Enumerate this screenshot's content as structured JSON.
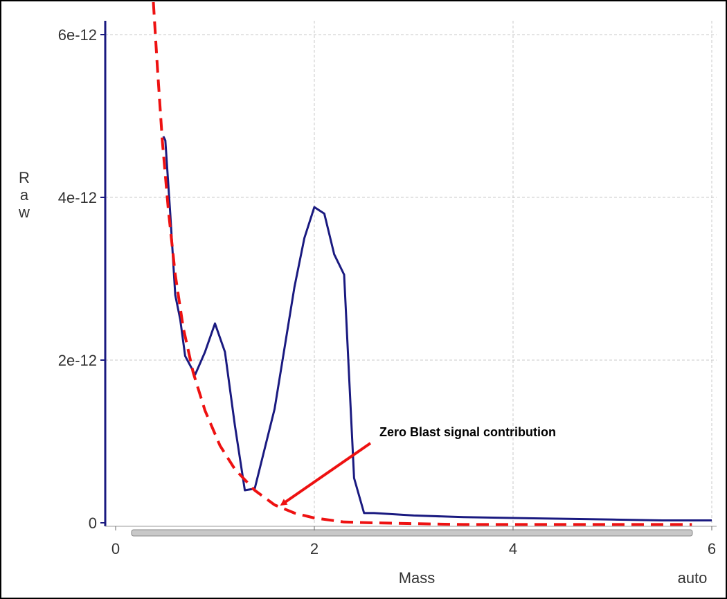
{
  "chart_data": {
    "type": "line",
    "xlabel": "Mass",
    "ylabel": "Raw",
    "xlim": [
      0,
      6
    ],
    "ylim": [
      0,
      6.2e-12
    ],
    "grid": true,
    "x_ticks": [
      {
        "value": 0,
        "label": "0"
      },
      {
        "value": 2,
        "label": "2"
      },
      {
        "value": 4,
        "label": "4"
      },
      {
        "value": 6,
        "label": "6"
      }
    ],
    "y_ticks": [
      {
        "value": 0,
        "label": "0"
      },
      {
        "value": 2e-12,
        "label": "2e-12"
      },
      {
        "value": 4e-12,
        "label": "4e-12"
      },
      {
        "value": 6e-12,
        "label": "6e-12"
      }
    ],
    "scale_mode_label": "auto",
    "series": [
      {
        "color": "#1a1a80",
        "style": "solid",
        "x": [
          0.48,
          0.5,
          0.55,
          0.6,
          0.65,
          0.7,
          0.8,
          0.9,
          1.0,
          1.1,
          1.2,
          1.3,
          1.4,
          1.6,
          1.8,
          1.9,
          2.0,
          2.1,
          2.2,
          2.3,
          2.4,
          2.5,
          2.6,
          3.0,
          3.5,
          4.0,
          4.5,
          5.0,
          5.5,
          6.0
        ],
        "y": [
          4.75e-12,
          4.7e-12,
          3.8e-12,
          2.8e-12,
          2.5e-12,
          2.05e-12,
          1.82e-12,
          2.1e-12,
          2.45e-12,
          2.1e-12,
          1.2e-12,
          4e-13,
          4.2e-13,
          1.4e-12,
          2.9e-12,
          3.5e-12,
          3.88e-12,
          3.8e-12,
          3.3e-12,
          3.05e-12,
          5.5e-13,
          1.2e-13,
          1.2e-13,
          9e-14,
          7e-14,
          6e-14,
          5e-14,
          4e-14,
          3e-14,
          3e-14
        ]
      },
      {
        "color": "#ee1111",
        "style": "dashed",
        "x": [
          0.38,
          0.42,
          0.47,
          0.53,
          0.6,
          0.68,
          0.78,
          0.9,
          1.05,
          1.2,
          1.4,
          1.6,
          1.8,
          2.0,
          2.3,
          2.6,
          3.0,
          3.5,
          4.0,
          4.5,
          5.0,
          5.5,
          5.8
        ],
        "y": [
          6.4e-12,
          5.6e-12,
          4.7e-12,
          3.85e-12,
          3.05e-12,
          2.4e-12,
          1.85e-12,
          1.38e-12,
          9.5e-13,
          6.6e-13,
          4e-13,
          2.2e-13,
          1.2e-13,
          6e-14,
          1e-14,
          0.0,
          -1e-14,
          -2e-14,
          -2e-14,
          -2e-14,
          -2e-14,
          -2e-14,
          -2e-14
        ]
      }
    ],
    "annotation": {
      "text": "Zero Blast signal contribution",
      "arrow_to": {
        "x": 1.6,
        "y": 1.5e-13
      }
    }
  }
}
